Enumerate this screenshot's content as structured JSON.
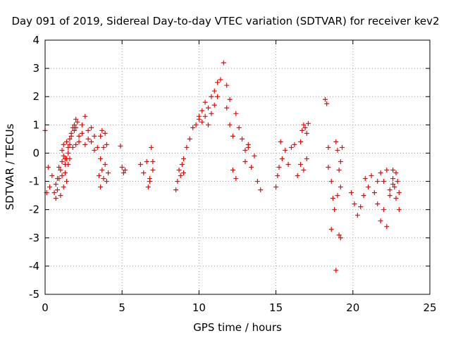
{
  "chart_data": {
    "type": "scatter",
    "title": "Day 091 of 2019, Sidereal Day-to-day VTEC variation (SDTVAR) for receiver kev2",
    "xlabel": "GPS time / hours",
    "ylabel": "SDTVAR / TECUs",
    "xlim": [
      0,
      25
    ],
    "ylim": [
      -5,
      4
    ],
    "xticks": [
      0,
      5,
      10,
      15,
      20,
      25
    ],
    "yticks": [
      -5,
      -4,
      -3,
      -2,
      -1,
      0,
      1,
      2,
      3,
      4
    ],
    "grid": true,
    "marker": "+",
    "color": "#ff0000",
    "segments": [
      {
        "x": [
          0.0,
          0.1,
          0.2,
          0.3,
          0.45,
          0.6,
          0.7,
          0.8,
          0.9,
          1.0,
          1.1,
          1.2,
          1.3,
          1.4,
          1.5,
          1.6,
          1.7,
          1.8,
          1.9,
          2.0,
          2.1
        ],
        "y": [
          0.8,
          -1.4,
          -0.5,
          -1.2,
          -0.8,
          -1.4,
          -1.1,
          -0.9,
          -0.5,
          -0.6,
          -0.3,
          -0.1,
          -0.4,
          -0.2,
          0.2,
          0.3,
          0.6,
          0.9,
          1.0,
          1.2,
          1.1
        ]
      },
      {
        "x": [
          0.7,
          0.8,
          0.9,
          1.0,
          1.1,
          1.2,
          1.3,
          1.4,
          1.5,
          1.6
        ],
        "y": [
          -1.6,
          -1.3,
          -0.9,
          -1.5,
          -0.8,
          -1.2,
          -0.7,
          -1.0,
          -0.4,
          -0.2
        ]
      },
      {
        "x": [
          1.1,
          1.2,
          1.3,
          1.4,
          1.5,
          1.6,
          1.7,
          1.8,
          1.9,
          2.0
        ],
        "y": [
          0.1,
          0.3,
          -0.2,
          0.4,
          0.0,
          0.5,
          0.7,
          0.2,
          0.8,
          0.3
        ]
      },
      {
        "x": [
          2.0,
          2.2,
          2.4,
          2.6,
          2.8,
          3.0,
          3.2,
          3.4,
          3.6
        ],
        "y": [
          0.9,
          0.6,
          1.0,
          1.3,
          0.8,
          0.4,
          0.6,
          0.2,
          -0.2
        ]
      },
      {
        "x": [
          2.2,
          2.4,
          2.6,
          2.8,
          3.0,
          3.2
        ],
        "y": [
          0.4,
          0.7,
          0.3,
          0.5,
          0.9,
          0.1
        ]
      },
      {
        "x": [
          3.5,
          3.6,
          3.7,
          3.8,
          3.9,
          4.0,
          4.1
        ],
        "y": [
          -0.8,
          -1.2,
          -0.6,
          -0.9,
          -0.4,
          -1.0,
          -0.7
        ]
      },
      {
        "x": [
          3.6,
          3.7,
          3.8,
          3.9,
          4.0
        ],
        "y": [
          0.6,
          0.8,
          0.2,
          0.7,
          0.3
        ]
      },
      {
        "x": [
          4.9,
          5.0,
          5.1,
          5.2
        ],
        "y": [
          0.25,
          -0.5,
          -0.7,
          -0.6
        ]
      },
      {
        "x": [
          6.2,
          6.4,
          6.6,
          6.8,
          7.0
        ],
        "y": [
          -0.4,
          -0.7,
          -0.3,
          -1.0,
          -0.6
        ]
      },
      {
        "x": [
          6.7,
          6.8,
          6.9,
          7.0
        ],
        "y": [
          -1.2,
          -0.9,
          0.2,
          -0.3
        ]
      },
      {
        "x": [
          8.5,
          8.6,
          8.7,
          8.8,
          8.9,
          9.0
        ],
        "y": [
          -1.3,
          -1.0,
          -0.6,
          -0.8,
          -0.4,
          -0.7
        ]
      },
      {
        "x": [
          9.0,
          9.2,
          9.4,
          9.6,
          9.8,
          10.0
        ],
        "y": [
          -0.2,
          0.2,
          0.5,
          0.9,
          1.0,
          1.3
        ]
      },
      {
        "x": [
          10.0,
          10.2,
          10.4,
          10.6,
          10.8,
          11.0,
          11.2,
          11.4,
          11.6,
          11.8,
          12.0
        ],
        "y": [
          1.2,
          1.5,
          1.8,
          1.6,
          2.0,
          2.2,
          2.5,
          2.6,
          3.2,
          2.4,
          1.9
        ]
      },
      {
        "x": [
          10.2,
          10.4,
          10.6,
          10.8,
          11.0,
          11.2
        ],
        "y": [
          1.1,
          1.3,
          1.0,
          1.4,
          1.7,
          2.0
        ]
      },
      {
        "x": [
          11.8,
          12.0,
          12.2,
          12.4,
          12.6,
          12.8,
          13.0,
          13.2
        ],
        "y": [
          1.6,
          1.0,
          0.6,
          1.4,
          0.9,
          0.5,
          0.1,
          0.3
        ]
      },
      {
        "x": [
          12.2,
          12.4
        ],
        "y": [
          -0.6,
          -0.9
        ]
      },
      {
        "x": [
          13.0,
          13.2,
          13.4,
          13.6,
          13.8,
          14.0
        ],
        "y": [
          -0.3,
          0.2,
          -0.5,
          -0.1,
          -1.0,
          -1.3
        ]
      },
      {
        "x": [
          15.0,
          15.1,
          15.2,
          15.3
        ],
        "y": [
          -1.2,
          -0.8,
          -0.5,
          0.4
        ]
      },
      {
        "x": [
          15.4,
          15.6,
          15.8,
          16.0,
          16.2
        ],
        "y": [
          -0.2,
          0.1,
          -0.4,
          0.2,
          0.3
        ]
      },
      {
        "x": [
          16.4,
          16.6,
          16.8,
          17.0
        ],
        "y": [
          -0.8,
          -0.4,
          -0.6,
          -0.2
        ]
      },
      {
        "x": [
          16.6,
          16.7,
          16.8,
          16.9,
          17.0,
          17.1
        ],
        "y": [
          0.4,
          0.8,
          1.0,
          0.9,
          0.7,
          1.05
        ]
      },
      {
        "x": [
          18.2,
          18.3,
          18.4
        ],
        "y": [
          1.9,
          1.75,
          0.2
        ]
      },
      {
        "x": [
          18.4,
          18.6,
          18.8,
          19.0,
          19.2
        ],
        "y": [
          -0.5,
          -1.0,
          -2.0,
          -1.5,
          -0.3
        ]
      },
      {
        "x": [
          18.6,
          18.7,
          18.9,
          19.1,
          19.2
        ],
        "y": [
          -2.7,
          -1.6,
          -4.15,
          -2.9,
          -3.0
        ]
      },
      {
        "x": [
          18.9,
          19.0,
          19.1,
          19.2,
          19.3
        ],
        "y": [
          0.4,
          0.1,
          -0.6,
          -1.2,
          0.2
        ]
      },
      {
        "x": [
          19.9,
          20.1,
          20.3,
          20.5,
          20.7
        ],
        "y": [
          -1.4,
          -1.8,
          -2.2,
          -1.9,
          -1.5
        ]
      },
      {
        "x": [
          20.8,
          21.0,
          21.2,
          21.4,
          21.6
        ],
        "y": [
          -0.9,
          -1.2,
          -0.8,
          -1.4,
          -1.0
        ]
      },
      {
        "x": [
          21.6,
          21.8,
          22.0,
          22.2,
          22.4,
          22.6,
          22.8,
          23.0
        ],
        "y": [
          -1.8,
          -2.4,
          -2.0,
          -2.6,
          -1.5,
          -0.9,
          -0.7,
          -2.0
        ]
      },
      {
        "x": [
          21.8,
          22.0,
          22.2,
          22.4,
          22.6
        ],
        "y": [
          -0.7,
          -1.0,
          -0.6,
          -1.3,
          -1.1
        ]
      },
      {
        "x": [
          22.6,
          22.7,
          22.8,
          22.9,
          23.0
        ],
        "y": [
          -0.6,
          -1.2,
          -1.6,
          -1.0,
          -1.4
        ]
      }
    ]
  }
}
